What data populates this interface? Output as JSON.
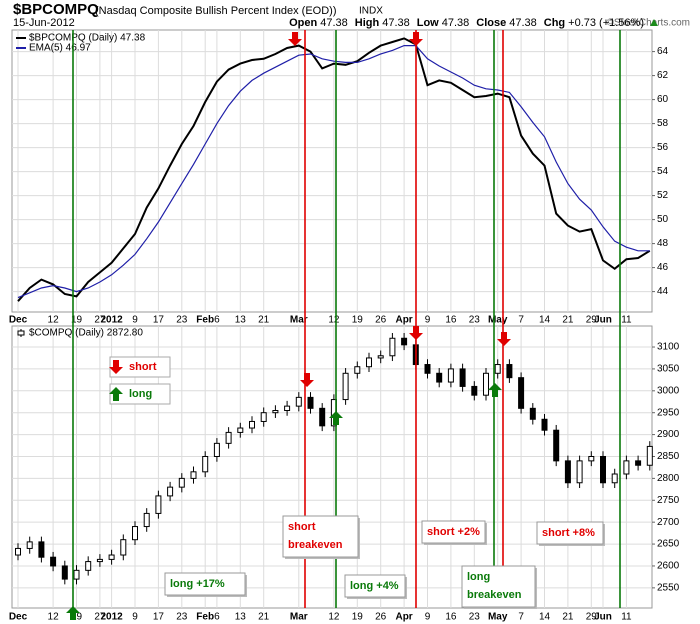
{
  "header": {
    "symbol": "$BPCOMPQ",
    "name": "(Nasdaq Composite Bullish Percent Index (EOD))",
    "exchange": "INDX",
    "date": "15-Jun-2012",
    "quote": [
      {
        "label": "Open",
        "value": "47.38"
      },
      {
        "label": "High",
        "value": "47.38"
      },
      {
        "label": "Low",
        "value": "47.38"
      },
      {
        "label": "Close",
        "value": "47.38"
      },
      {
        "label": "Chg",
        "value": "+0.73 (+1.56%)"
      }
    ],
    "credit": "©StockCharts.com"
  },
  "chart_data": [
    {
      "type": "line",
      "categories": [
        "Dec",
        null,
        null,
        "12",
        null,
        "19",
        null,
        "27",
        "2012",
        null,
        "9",
        null,
        "17",
        null,
        "23",
        null,
        "Feb",
        "6",
        null,
        "13",
        null,
        "21",
        null,
        null,
        "Mar",
        null,
        null,
        "12",
        null,
        "19",
        null,
        "26",
        null,
        "Apr",
        null,
        "9",
        null,
        "16",
        null,
        "23",
        null,
        "May",
        null,
        "7",
        null,
        "14",
        null,
        "21",
        null,
        "29",
        "Jun",
        null,
        "11",
        null,
        null
      ],
      "series": [
        {
          "name": "$BPCOMPQ (Daily) 47.38",
          "color": "#000000",
          "values": [
            43.2,
            44.3,
            45.0,
            44.6,
            43.8,
            43.6,
            44.8,
            45.6,
            46.4,
            47.6,
            48.8,
            51.0,
            52.6,
            54.5,
            56.3,
            57.8,
            59.8,
            61.5,
            62.5,
            63.0,
            63.3,
            63.4,
            63.8,
            64.3,
            64.5,
            64.0,
            62.6,
            63.0,
            62.9,
            63.2,
            63.9,
            64.5,
            64.8,
            65.1,
            64.6,
            61.2,
            61.6,
            61.4,
            60.8,
            60.2,
            60.3,
            60.5,
            60.2,
            57.0,
            55.5,
            54.5,
            50.5,
            49.5,
            49.0,
            49.2,
            46.6,
            45.9,
            46.7,
            46.8,
            47.4
          ]
        },
        {
          "name": "EMA(5) 46.97",
          "color": "#1f1fa8",
          "values": [
            43.5,
            43.9,
            44.3,
            44.5,
            44.3,
            44.0,
            44.3,
            44.8,
            45.4,
            46.2,
            47.1,
            48.4,
            49.8,
            51.4,
            53.0,
            54.6,
            56.3,
            58.0,
            59.5,
            60.7,
            61.6,
            62.2,
            62.7,
            63.2,
            63.7,
            63.8,
            63.4,
            63.2,
            63.1,
            63.1,
            63.4,
            63.8,
            64.1,
            64.5,
            64.5,
            63.4,
            62.8,
            62.3,
            61.8,
            61.2,
            60.9,
            60.8,
            60.6,
            59.4,
            58.1,
            56.9,
            54.8,
            53.0,
            51.7,
            50.8,
            49.4,
            48.2,
            47.7,
            47.4,
            47.4
          ]
        }
      ],
      "ylim": [
        42.3,
        65.8
      ],
      "yticks": [
        44,
        46,
        48,
        50,
        52,
        54,
        56,
        58,
        60,
        62,
        64
      ],
      "grid": true
    },
    {
      "type": "candlestick",
      "name": "$COMPQ (Daily) 2872.80",
      "categories": [
        "Dec",
        null,
        null,
        "12",
        null,
        "19",
        null,
        "27",
        "2012",
        null,
        "9",
        null,
        "17",
        null,
        "23",
        null,
        "Feb",
        "6",
        null,
        "13",
        null,
        "21",
        null,
        null,
        "Mar",
        null,
        null,
        "12",
        null,
        "19",
        null,
        "26",
        null,
        "Apr",
        null,
        "9",
        null,
        "16",
        null,
        "23",
        null,
        "May",
        null,
        "7",
        null,
        "14",
        null,
        "21",
        null,
        "29",
        "Jun",
        null,
        "11",
        null,
        null
      ],
      "open": [
        2625,
        2640,
        2655,
        2620,
        2600,
        2570,
        2590,
        2610,
        2615,
        2625,
        2660,
        2690,
        2720,
        2760,
        2780,
        2800,
        2815,
        2850,
        2880,
        2905,
        2915,
        2930,
        2950,
        2955,
        2965,
        2985,
        2960,
        2920,
        2980,
        3040,
        3055,
        3075,
        3080,
        3120,
        3105,
        3060,
        3040,
        3020,
        3050,
        3010,
        2990,
        3040,
        3060,
        3030,
        2960,
        2935,
        2910,
        2840,
        2790,
        2840,
        2850,
        2790,
        2810,
        2840,
        2830
      ],
      "high": [
        2652,
        2667,
        2667,
        2632,
        2612,
        2602,
        2622,
        2627,
        2637,
        2672,
        2702,
        2732,
        2772,
        2792,
        2812,
        2827,
        2862,
        2892,
        2917,
        2927,
        2942,
        2962,
        2967,
        2977,
        2997,
        2997,
        2972,
        2992,
        3052,
        3067,
        3087,
        3092,
        3132,
        3132,
        3117,
        3072,
        3052,
        3062,
        3062,
        3022,
        3052,
        3072,
        3072,
        3042,
        2972,
        2947,
        2922,
        2852,
        2852,
        2862,
        2862,
        2822,
        2852,
        2852,
        2885
      ],
      "low": [
        2613,
        2628,
        2608,
        2588,
        2558,
        2558,
        2578,
        2598,
        2603,
        2613,
        2648,
        2678,
        2708,
        2748,
        2768,
        2788,
        2803,
        2838,
        2868,
        2893,
        2903,
        2918,
        2938,
        2943,
        2953,
        2948,
        2908,
        2908,
        2968,
        3028,
        3043,
        3063,
        3068,
        3093,
        3048,
        3028,
        3008,
        3008,
        2998,
        2978,
        2978,
        3028,
        3018,
        2948,
        2923,
        2898,
        2828,
        2778,
        2778,
        2828,
        2778,
        2778,
        2798,
        2818,
        2818
      ],
      "close": [
        2640,
        2655,
        2620,
        2600,
        2570,
        2590,
        2610,
        2615,
        2625,
        2660,
        2690,
        2720,
        2760,
        2780,
        2800,
        2815,
        2850,
        2880,
        2905,
        2915,
        2930,
        2950,
        2955,
        2965,
        2985,
        2960,
        2920,
        2980,
        3040,
        3055,
        3075,
        3080,
        3120,
        3105,
        3060,
        3040,
        3020,
        3050,
        3010,
        2990,
        3040,
        3060,
        3030,
        2960,
        2935,
        2910,
        2840,
        2790,
        2840,
        2850,
        2790,
        2810,
        2840,
        2830,
        2873
      ],
      "ylim": [
        2504,
        3148
      ],
      "yticks": [
        2550,
        2600,
        2650,
        2700,
        2750,
        2800,
        2850,
        2900,
        2950,
        3000,
        3050,
        3100
      ],
      "grid": true
    }
  ],
  "annotations": {
    "legend": [
      "short",
      "long"
    ],
    "labels": [
      [
        "short",
        "breakeven"
      ],
      [
        "long +17%"
      ],
      [
        "long +4%"
      ],
      [
        "short +2%"
      ],
      [
        "long",
        "breakeven"
      ],
      [
        "short +8%"
      ]
    ]
  }
}
